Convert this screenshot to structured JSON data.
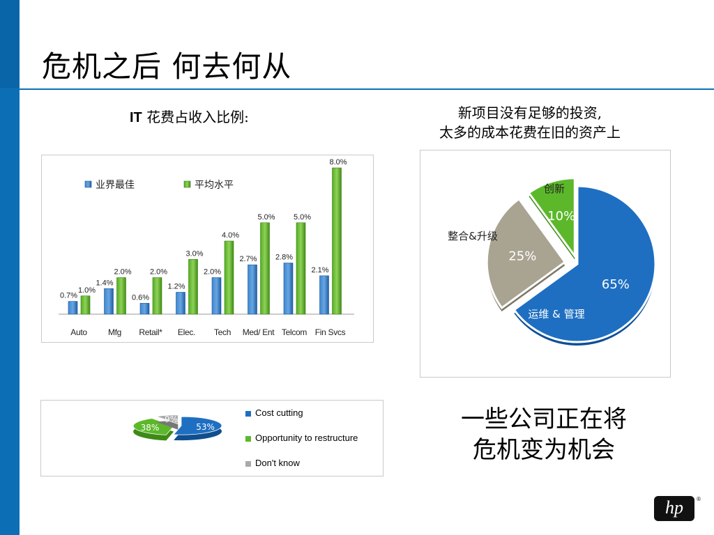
{
  "title": "危机之后 何去何从",
  "bar_heading_bold": "IT",
  "bar_heading_rest": " 花费占收入比例:",
  "pie_heading_line1": "新项目没有足够的投资,",
  "pie_heading_line2": "太多的成本花费在旧的资产上",
  "bottom_message_line1": "一些公司正在将",
  "bottom_message_line2": "危机变为机会",
  "logo_text": "hp",
  "logo_mark": "®",
  "colors": {
    "blue": "#1e6fc1",
    "green": "#5cb82a",
    "gray": "#a9a492",
    "brand": "#0c6fb5"
  },
  "chart_data": [
    {
      "type": "bar",
      "categories": [
        "Auto",
        "Mfg",
        "Retail*",
        "Elec.",
        "Tech",
        "Med/ Ent",
        "Telcom",
        "Fin Svcs"
      ],
      "series": [
        {
          "name": "业界最佳",
          "values": [
            0.7,
            1.4,
            0.6,
            1.2,
            2.0,
            2.7,
            2.8,
            2.1
          ],
          "labels": [
            "0.7%",
            "1.4%",
            "0.6%",
            "1.2%",
            "2.0%",
            "2.7%",
            "2.8%",
            "2.1%"
          ]
        },
        {
          "name": "平均水平",
          "values": [
            1.0,
            2.0,
            2.0,
            3.0,
            4.0,
            5.0,
            5.0,
            8.0
          ],
          "labels": [
            "1.0%",
            "2.0%",
            "2.0%",
            "3.0%",
            "4.0%",
            "5.0%",
            "5.0%",
            "8.0%"
          ]
        }
      ],
      "ylim": [
        0,
        8
      ],
      "legend_position": "top-left",
      "grid": false
    },
    {
      "type": "pie",
      "slices": [
        {
          "name": "运维 & 管理",
          "value": 65,
          "label": "65%"
        },
        {
          "name": "整合&升级",
          "value": 25,
          "label": "25%"
        },
        {
          "name": "创新",
          "value": 10,
          "label": "10%"
        }
      ]
    },
    {
      "type": "pie",
      "slices": [
        {
          "name": "Cost cutting",
          "value": 53,
          "label": "53%"
        },
        {
          "name": "Opportunity to restructure",
          "value": 38,
          "label": "38%"
        },
        {
          "name": "Don't know",
          "value": 9,
          "label": "9%"
        }
      ],
      "legend_position": "right"
    }
  ]
}
